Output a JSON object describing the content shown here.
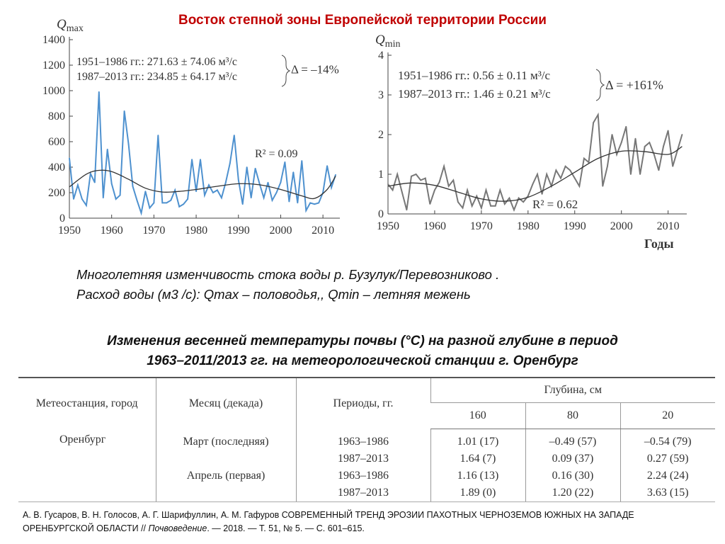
{
  "slide_title": "Восток степной зоны Европейской территории России",
  "caption": {
    "line1": "Многолетняя изменчивость стока воды р. Бузулук/Перевозниково .",
    "line2": "Расход воды (м3 /с): Qmax – половодья,, Qmin – летняя межень"
  },
  "table_title": {
    "line1": "Изменения весенней температуры почвы (°С) на разной глубине в  период",
    "line2": "1963–2011/2013 гг. на метеорологической станции  г. Оренбург"
  },
  "table": {
    "headers": {
      "station": "Метеостанция, город",
      "month": "Месяц (декада)",
      "periods": "Периоды, гг.",
      "depth": "Глубина, см",
      "d160": "160",
      "d80": "80",
      "d20": "20"
    },
    "rows": [
      {
        "station": "Оренбург",
        "month": "Март (последняя)",
        "period": "1963–1986",
        "v160": "1.01 (17)",
        "v80": "–0.49 (57)",
        "v20": "–0.54 (79)"
      },
      {
        "station": "",
        "month": "",
        "period": "1987–2013",
        "v160": "1.64 (7)",
        "v80": "0.09 (37)",
        "v20": "0.27 (59)"
      },
      {
        "station": "",
        "month": "Апрель (первая)",
        "period": "1963–1986",
        "v160": "1.16 (13)",
        "v80": "0.16 (30)",
        "v20": "2.24 (24)"
      },
      {
        "station": "",
        "month": "",
        "period": "1987–2013",
        "v160": "1.89 (0)",
        "v80": "1.20 (22)",
        "v20": "3.63 (15)"
      }
    ]
  },
  "reference": {
    "authors": "А. В. Гусаров, В. Н. Голосов, А. Г. Шарифуллин, А. М. Гафуров СОВРЕМЕННЫЙ ТРЕНД ЭРОЗИИ ПАХОТНЫХ ЧЕРНОЗЕМОВ ЮЖНЫХ НА ЗАПАДЕ",
    "line2_start": "ОРЕНБУРГСКОЙ ОБЛАСТИ  // ",
    "journal": "Почвоведение",
    "line2_end": ". — 2018. — Т. 51, № 5. — С. 601–615."
  },
  "chart_data": [
    {
      "type": "line",
      "ylabel_main": "Q",
      "ylabel_sub": "max",
      "xlim": [
        1950,
        2014
      ],
      "ylim": [
        0,
        1400
      ],
      "xticks": [
        1950,
        1960,
        1970,
        1980,
        1990,
        2000,
        2010
      ],
      "yticks": [
        0,
        200,
        400,
        600,
        800,
        1000,
        1200,
        1400
      ],
      "grid": false,
      "series_color": "#4e91cf",
      "trend_color": "#333333",
      "annotations": {
        "period1": "1951–1986 гг.: 271.63 ± 74.06 м³/с",
        "period2": "1987–2013 гг.: 234.85 ± 64.17 м³/с",
        "delta": "Δ = –14%",
        "r2": "R² = 0.09"
      },
      "x": [
        1950,
        1951,
        1952,
        1953,
        1954,
        1955,
        1956,
        1957,
        1958,
        1959,
        1960,
        1961,
        1962,
        1963,
        1964,
        1965,
        1966,
        1967,
        1968,
        1969,
        1970,
        1971,
        1972,
        1973,
        1974,
        1975,
        1976,
        1977,
        1978,
        1979,
        1980,
        1981,
        1982,
        1983,
        1984,
        1985,
        1986,
        1987,
        1988,
        1989,
        1990,
        1991,
        1992,
        1993,
        1994,
        1995,
        1996,
        1997,
        1998,
        1999,
        2000,
        2001,
        2002,
        2003,
        2004,
        2005,
        2006,
        2007,
        2008,
        2009,
        2010,
        2011,
        2012,
        2013
      ],
      "values": [
        470,
        150,
        260,
        150,
        100,
        350,
        280,
        990,
        160,
        540,
        270,
        150,
        180,
        840,
        580,
        250,
        140,
        40,
        210,
        80,
        120,
        650,
        120,
        120,
        140,
        220,
        90,
        110,
        150,
        460,
        210,
        460,
        180,
        260,
        200,
        220,
        160,
        280,
        430,
        650,
        300,
        110,
        400,
        160,
        390,
        270,
        160,
        280,
        140,
        200,
        280,
        440,
        130,
        360,
        120,
        450,
        60,
        120,
        110,
        120,
        200,
        410,
        240,
        340
      ],
      "trend": [
        [
          1950,
          245
        ],
        [
          1954,
          345
        ],
        [
          1957,
          375
        ],
        [
          1960,
          365
        ],
        [
          1964,
          305
        ],
        [
          1968,
          235
        ],
        [
          1972,
          205
        ],
        [
          1976,
          210
        ],
        [
          1980,
          225
        ],
        [
          1985,
          250
        ],
        [
          1990,
          270
        ],
        [
          1995,
          262
        ],
        [
          2000,
          225
        ],
        [
          2005,
          175
        ],
        [
          2008,
          155
        ],
        [
          2011,
          225
        ],
        [
          2013,
          330
        ]
      ]
    },
    {
      "type": "line",
      "ylabel_main": "Q",
      "ylabel_sub": "min",
      "xlabel": "Годы",
      "xlim": [
        1950,
        2014
      ],
      "ylim": [
        0,
        4
      ],
      "xticks": [
        1950,
        1960,
        1970,
        1980,
        1990,
        2000,
        2010
      ],
      "yticks": [
        0,
        1,
        2,
        3,
        4
      ],
      "grid": false,
      "series_color": "#777777",
      "trend_color": "#333333",
      "annotations": {
        "period1": "1951–1986 гг.: 0.56 ± 0.11 м³/с",
        "period2": "1987–2013 гг.: 1.46 ± 0.21 м³/с",
        "delta": "Δ = +161%",
        "r2": "R² = 0.62"
      },
      "x": [
        1950,
        1951,
        1952,
        1953,
        1954,
        1955,
        1956,
        1957,
        1958,
        1959,
        1960,
        1961,
        1962,
        1963,
        1964,
        1965,
        1966,
        1967,
        1968,
        1969,
        1970,
        1971,
        1972,
        1973,
        1974,
        1975,
        1976,
        1977,
        1978,
        1979,
        1980,
        1981,
        1982,
        1983,
        1984,
        1985,
        1986,
        1987,
        1988,
        1989,
        1990,
        1991,
        1992,
        1993,
        1994,
        1995,
        1996,
        1997,
        1998,
        1999,
        2000,
        2001,
        2002,
        2003,
        2004,
        2005,
        2006,
        2007,
        2008,
        2009,
        2010,
        2011,
        2012,
        2013
      ],
      "values": [
        0.75,
        0.6,
        1.0,
        0.55,
        0.1,
        0.95,
        1.0,
        0.85,
        0.9,
        0.25,
        0.6,
        0.8,
        1.2,
        0.7,
        0.85,
        0.3,
        0.15,
        0.6,
        0.2,
        0.45,
        0.15,
        0.6,
        0.2,
        0.2,
        0.6,
        0.25,
        0.4,
        0.1,
        0.4,
        0.3,
        0.45,
        0.75,
        1.0,
        0.5,
        1.0,
        0.7,
        1.1,
        0.9,
        1.2,
        1.1,
        0.9,
        0.7,
        1.4,
        1.3,
        2.3,
        2.5,
        0.7,
        1.2,
        2.0,
        1.5,
        1.8,
        2.2,
        1.0,
        1.9,
        1.0,
        1.7,
        1.8,
        1.5,
        1.1,
        1.7,
        2.1,
        1.2,
        1.6,
        2.0
      ],
      "trend": [
        [
          1950,
          0.7
        ],
        [
          1955,
          0.78
        ],
        [
          1960,
          0.72
        ],
        [
          1965,
          0.55
        ],
        [
          1970,
          0.38
        ],
        [
          1975,
          0.32
        ],
        [
          1980,
          0.42
        ],
        [
          1985,
          0.7
        ],
        [
          1990,
          1.05
        ],
        [
          1995,
          1.4
        ],
        [
          2000,
          1.58
        ],
        [
          2005,
          1.57
        ],
        [
          2010,
          1.5
        ],
        [
          2013,
          1.7
        ]
      ]
    }
  ]
}
